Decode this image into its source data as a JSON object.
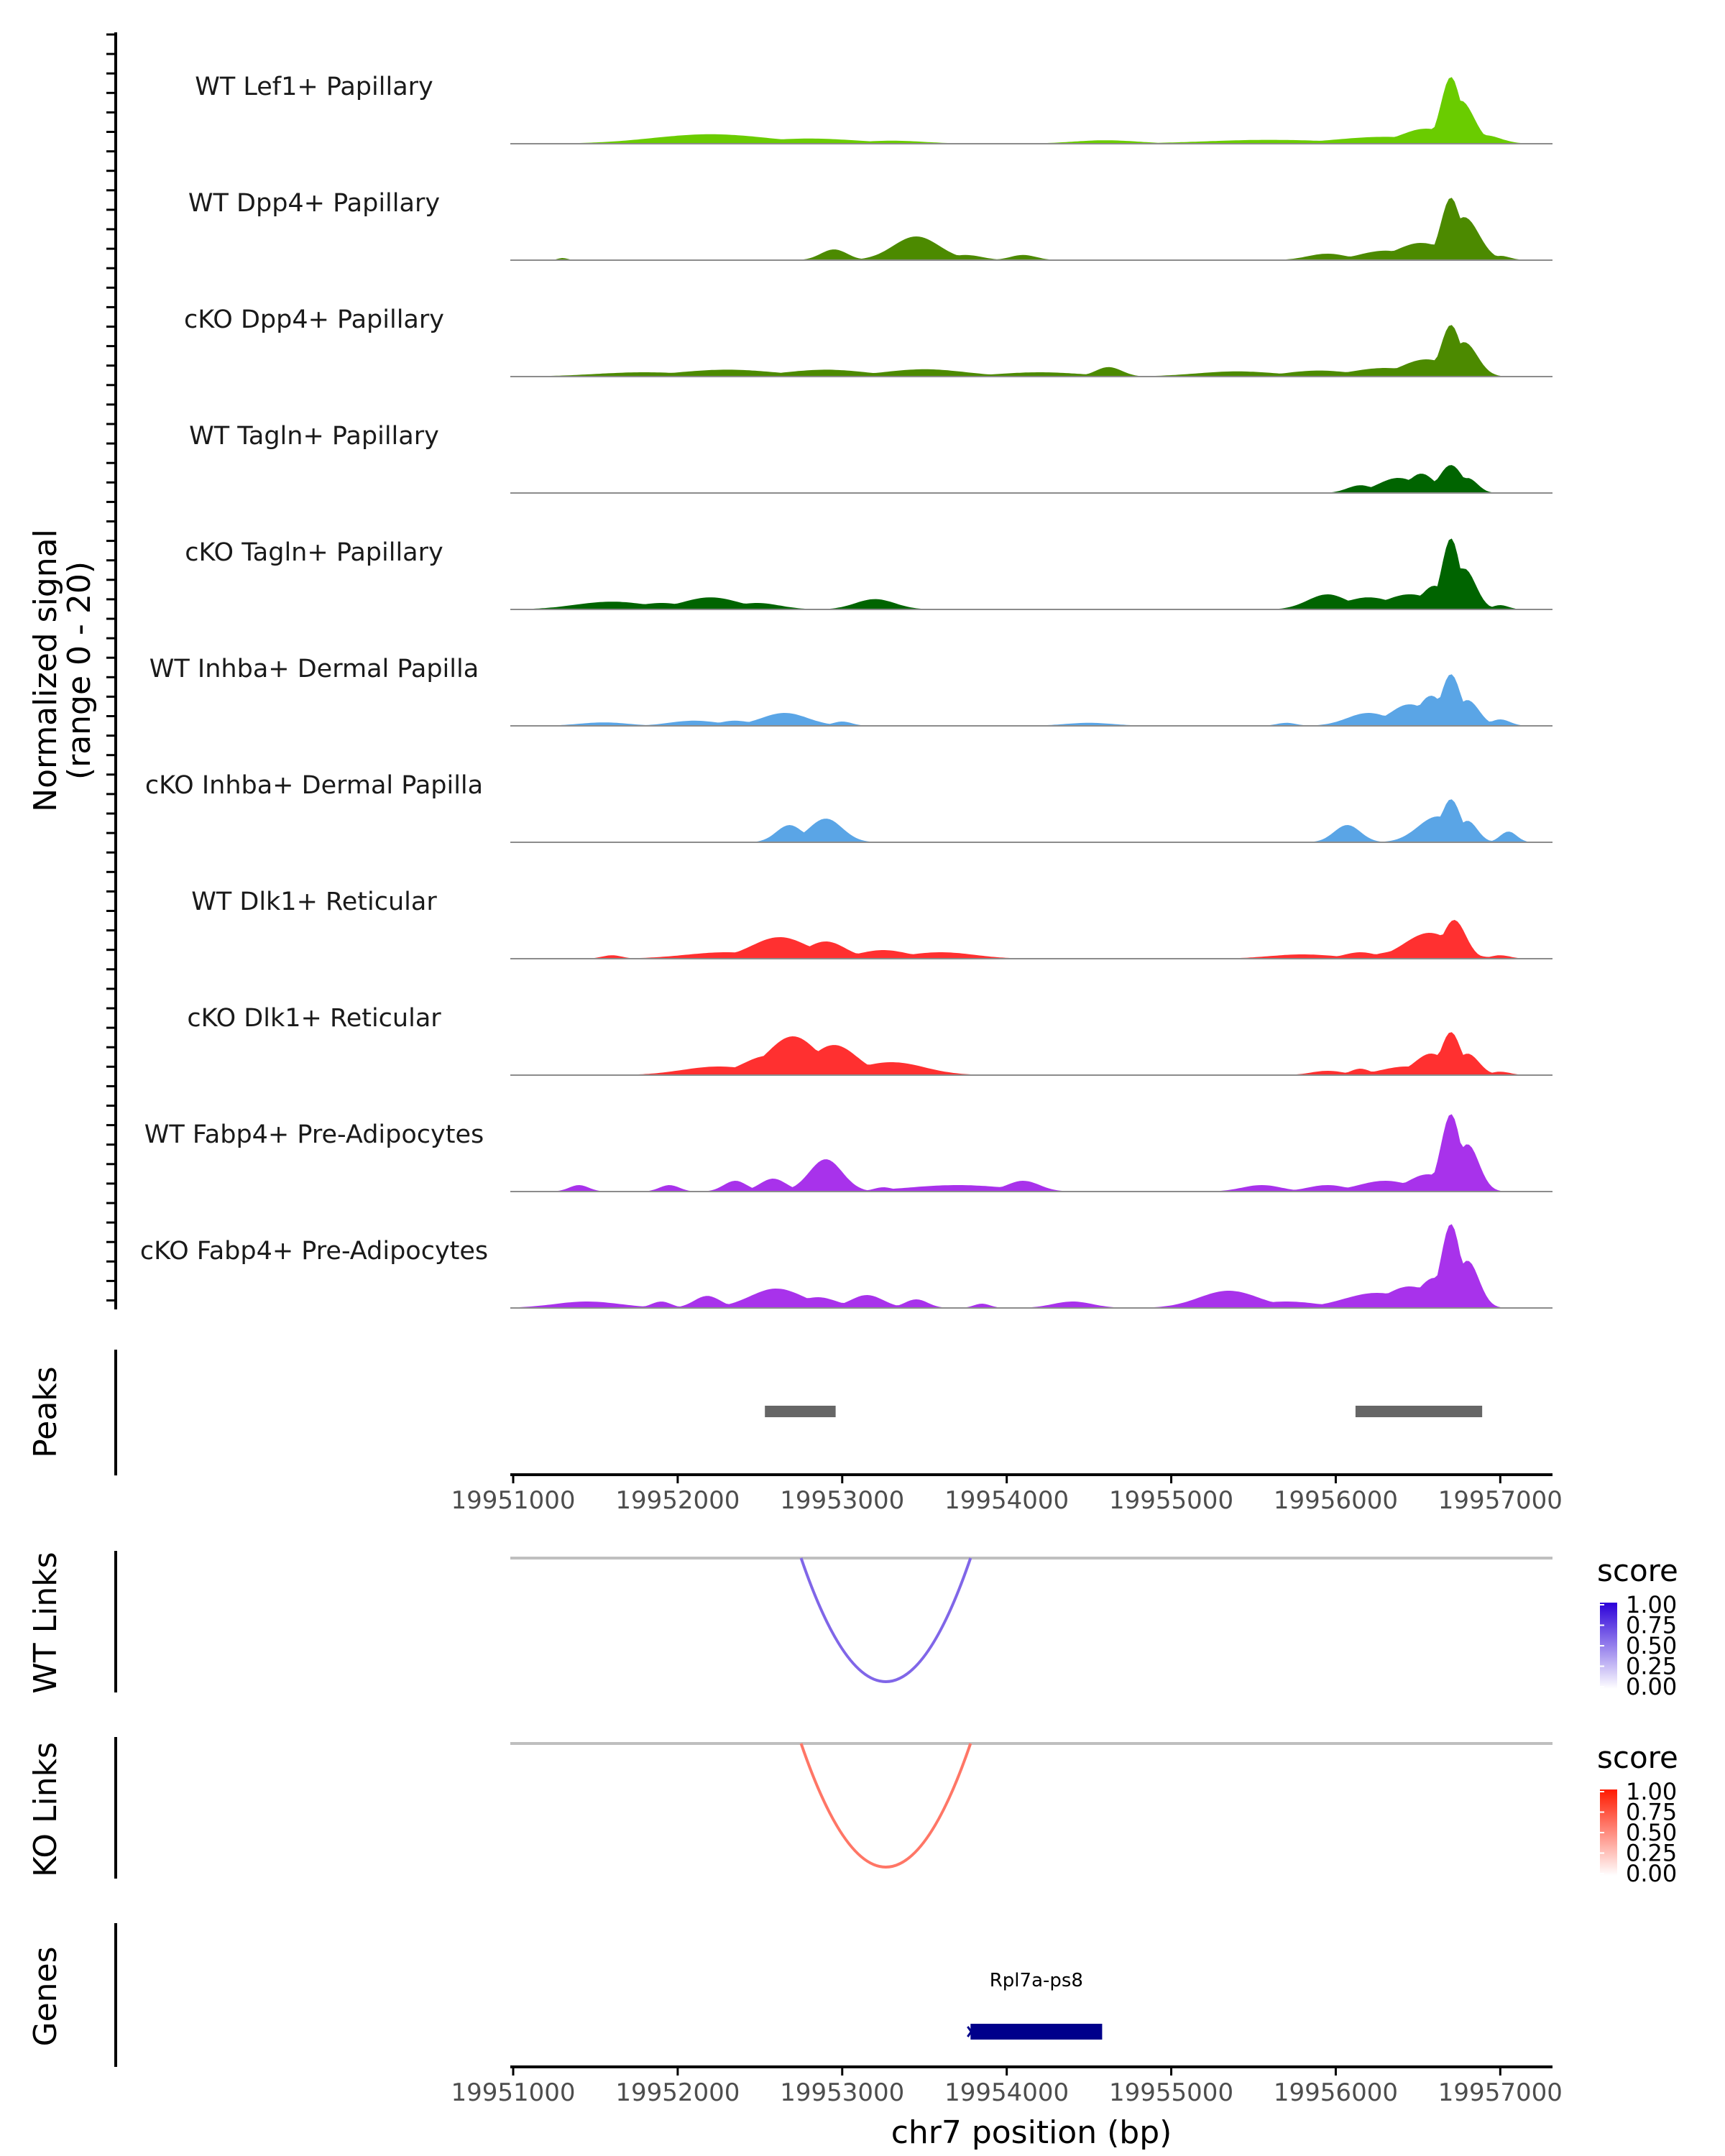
{
  "colors": {
    "baseline": "#8c8c8c",
    "axis": "#000000",
    "peak": "#666666",
    "link_bg": "#bfbfbf",
    "gene": "#00008b",
    "wt_link": "#7b4dff",
    "ko_link": "#ff5a3c"
  },
  "chart_data": {
    "type": "area",
    "title": "",
    "xlabel": "chr7 position (bp)",
    "ylabel_line1": "Normalized signal",
    "ylabel_line2": "(range 0 - 20)",
    "xlim": [
      19951000,
      19957300
    ],
    "x_ticks": [
      19951000,
      19952000,
      19953000,
      19954000,
      19955000,
      19956000,
      19957000
    ],
    "x_tick_labels": [
      "19951000",
      "19952000",
      "19953000",
      "19954000",
      "19955000",
      "19956000",
      "19957000"
    ],
    "ylim": [
      0,
      20
    ],
    "tracks": [
      {
        "name": "WT Lef1+ Papillary",
        "color": "#6acc00",
        "peaks": [
          [
            19952200,
            2.2,
            350
          ],
          [
            19952800,
            1.2,
            300
          ],
          [
            19953300,
            0.7,
            200
          ],
          [
            19954600,
            0.8,
            200
          ],
          [
            19955600,
            0.9,
            400
          ],
          [
            19956300,
            1.6,
            300
          ],
          [
            19956550,
            3.5,
            150
          ],
          [
            19956700,
            15.5,
            60
          ],
          [
            19956760,
            10.0,
            80
          ],
          [
            19956900,
            2.0,
            100
          ]
        ]
      },
      {
        "name": "WT Dpp4+ Papillary",
        "color": "#4c8a00",
        "peaks": [
          [
            19951300,
            0.5,
            30
          ],
          [
            19952950,
            2.5,
            80
          ],
          [
            19953450,
            5.5,
            140
          ],
          [
            19953750,
            1.2,
            100
          ],
          [
            19954100,
            1.2,
            80
          ],
          [
            19955950,
            1.5,
            120
          ],
          [
            19956300,
            2.2,
            150
          ],
          [
            19956520,
            4.0,
            150
          ],
          [
            19956700,
            14.5,
            60
          ],
          [
            19956780,
            10.0,
            90
          ],
          [
            19957000,
            1.0,
            60
          ]
        ]
      },
      {
        "name": "cKO Dpp4+ Papillary",
        "color": "#4c8a00",
        "peaks": [
          [
            19951800,
            1.0,
            300
          ],
          [
            19952300,
            1.6,
            300
          ],
          [
            19952900,
            1.6,
            250
          ],
          [
            19953500,
            1.7,
            250
          ],
          [
            19954200,
            1.0,
            250
          ],
          [
            19954620,
            2.2,
            80
          ],
          [
            19955400,
            1.2,
            250
          ],
          [
            19955900,
            1.4,
            200
          ],
          [
            19956300,
            2.0,
            200
          ],
          [
            19956550,
            4.0,
            150
          ],
          [
            19956700,
            12.0,
            60
          ],
          [
            19956780,
            8.0,
            80
          ]
        ]
      },
      {
        "name": "WT Tagln+ Papillary",
        "color": "#006400",
        "peaks": [
          [
            19956150,
            1.8,
            80
          ],
          [
            19956380,
            3.5,
            120
          ],
          [
            19956520,
            4.5,
            80
          ],
          [
            19956700,
            6.5,
            70
          ],
          [
            19956800,
            3.5,
            60
          ]
        ]
      },
      {
        "name": "cKO Tagln+ Papillary",
        "color": "#006400",
        "peaks": [
          [
            19951600,
            1.8,
            220
          ],
          [
            19951900,
            1.5,
            150
          ],
          [
            19952200,
            2.8,
            170
          ],
          [
            19952480,
            1.5,
            140
          ],
          [
            19953200,
            2.4,
            120
          ],
          [
            19955950,
            3.5,
            120
          ],
          [
            19956200,
            2.8,
            150
          ],
          [
            19956450,
            3.5,
            150
          ],
          [
            19956600,
            5.5,
            80
          ],
          [
            19956700,
            16.5,
            55
          ],
          [
            19956780,
            9.5,
            70
          ],
          [
            19957000,
            1.0,
            50
          ]
        ]
      },
      {
        "name": "WT Inhba+ Dermal Papilla",
        "color": "#5aa5e6",
        "peaks": [
          [
            19951550,
            0.8,
            150
          ],
          [
            19952100,
            1.2,
            150
          ],
          [
            19952350,
            1.2,
            100
          ],
          [
            19952650,
            3.0,
            140
          ],
          [
            19953000,
            1.0,
            60
          ],
          [
            19954500,
            0.7,
            150
          ],
          [
            19955700,
            0.7,
            60
          ],
          [
            19956200,
            3.0,
            130
          ],
          [
            19956450,
            5.0,
            120
          ],
          [
            19956580,
            7.0,
            80
          ],
          [
            19956700,
            12.0,
            60
          ],
          [
            19956800,
            6.0,
            70
          ],
          [
            19957000,
            1.5,
            60
          ]
        ]
      },
      {
        "name": "cKO Inhba+ Dermal Papilla",
        "color": "#5aa5e6",
        "peaks": [
          [
            19952680,
            4.0,
            80
          ],
          [
            19952900,
            5.5,
            100
          ],
          [
            19956070,
            4.0,
            80
          ],
          [
            19956620,
            6.0,
            120
          ],
          [
            19956700,
            10.0,
            60
          ],
          [
            19956800,
            5.0,
            60
          ],
          [
            19957050,
            2.5,
            50
          ]
        ]
      },
      {
        "name": "WT Dlk1+ Reticular",
        "color": "#ff3030",
        "peaks": [
          [
            19951600,
            0.8,
            60
          ],
          [
            19952300,
            1.5,
            250
          ],
          [
            19952620,
            5.0,
            170
          ],
          [
            19952900,
            4.0,
            120
          ],
          [
            19953250,
            2.0,
            150
          ],
          [
            19953600,
            1.5,
            200
          ],
          [
            19955800,
            1.0,
            200
          ],
          [
            19956150,
            1.5,
            100
          ],
          [
            19956420,
            2.0,
            150
          ],
          [
            19956570,
            6.0,
            150
          ],
          [
            19956720,
            9.0,
            70
          ],
          [
            19957000,
            0.8,
            60
          ]
        ]
      },
      {
        "name": "cKO Dlk1+ Reticular",
        "color": "#ff3030",
        "peaks": [
          [
            19952250,
            2.0,
            220
          ],
          [
            19952550,
            4.5,
            150
          ],
          [
            19952700,
            9.0,
            150
          ],
          [
            19952950,
            7.0,
            140
          ],
          [
            19953300,
            3.0,
            200
          ],
          [
            19955950,
            1.0,
            100
          ],
          [
            19956150,
            1.5,
            60
          ],
          [
            19956430,
            2.0,
            150
          ],
          [
            19956580,
            5.0,
            100
          ],
          [
            19956700,
            10.0,
            60
          ],
          [
            19956800,
            5.0,
            70
          ],
          [
            19957000,
            0.8,
            60
          ]
        ]
      },
      {
        "name": "WT Fabp4+ Pre-Adipocytes",
        "color": "#a832eb",
        "peaks": [
          [
            19951400,
            1.5,
            60
          ],
          [
            19951950,
            1.5,
            60
          ],
          [
            19952350,
            2.5,
            70
          ],
          [
            19952580,
            3.0,
            80
          ],
          [
            19952900,
            7.5,
            100
          ],
          [
            19953250,
            1.0,
            60
          ],
          [
            19953700,
            1.5,
            300
          ],
          [
            19954100,
            2.5,
            100
          ],
          [
            19955550,
            1.5,
            120
          ],
          [
            19955950,
            1.5,
            120
          ],
          [
            19956300,
            2.5,
            160
          ],
          [
            19956560,
            4.0,
            120
          ],
          [
            19956700,
            18.0,
            60
          ],
          [
            19956800,
            11.0,
            70
          ]
        ]
      },
      {
        "name": "cKO Fabp4+ Pre-Adipocytes",
        "color": "#a832eb",
        "peaks": [
          [
            19951450,
            1.5,
            200
          ],
          [
            19951900,
            1.5,
            60
          ],
          [
            19952180,
            2.8,
            80
          ],
          [
            19952600,
            4.5,
            160
          ],
          [
            19952850,
            2.5,
            120
          ],
          [
            19953150,
            3.0,
            100
          ],
          [
            19953450,
            2.0,
            70
          ],
          [
            19953850,
            1.0,
            50
          ],
          [
            19954400,
            1.5,
            120
          ],
          [
            19955350,
            4.0,
            180
          ],
          [
            19955700,
            1.5,
            200
          ],
          [
            19956250,
            3.5,
            200
          ],
          [
            19956450,
            5.0,
            150
          ],
          [
            19956600,
            7.0,
            100
          ],
          [
            19956700,
            19.5,
            60
          ],
          [
            19956800,
            11.0,
            70
          ]
        ]
      }
    ],
    "peaks_label": "Peaks",
    "peak_regions": [
      [
        19952530,
        19952960
      ],
      [
        19956120,
        19956890
      ]
    ],
    "links": [
      {
        "label": "WT Links",
        "start": 19952750,
        "end": 19953780,
        "score": 0.6,
        "legend_title": "score",
        "legend_ticks": [
          "1.00",
          "0.75",
          "0.50",
          "0.25",
          "0.00"
        ],
        "color_low": "#ffffff",
        "color_high": "#2b00d9"
      },
      {
        "label": "KO Links",
        "start": 19952750,
        "end": 19953780,
        "score": 0.6,
        "legend_title": "score",
        "legend_ticks": [
          "1.00",
          "0.75",
          "0.50",
          "0.25",
          "0.00"
        ],
        "color_low": "#ffffff",
        "color_high": "#ff1a00"
      }
    ],
    "genes_label": "Genes",
    "genes": [
      {
        "name": "Rpl7a-ps8",
        "start": 19953780,
        "end": 19954580,
        "strand": "-"
      }
    ]
  }
}
